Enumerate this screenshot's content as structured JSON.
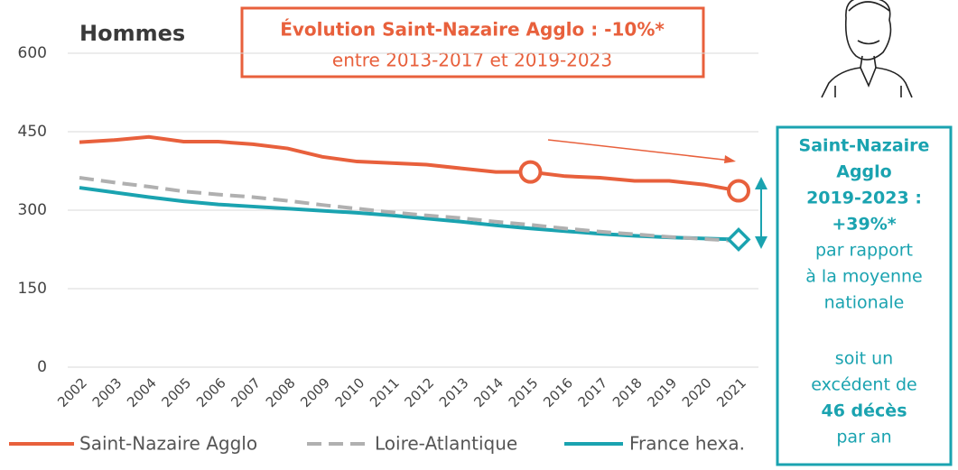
{
  "chart_data": {
    "type": "line",
    "title": "Hommes",
    "categories": [
      "2002",
      "2003",
      "2004",
      "2005",
      "2006",
      "2007",
      "2008",
      "2009",
      "2010",
      "2011",
      "2012",
      "2013",
      "2014",
      "2015",
      "2016",
      "2017",
      "2018",
      "2019",
      "2020",
      "2021"
    ],
    "series": [
      {
        "name": "Saint-Nazaire Agglo",
        "color": "#e8603c",
        "dash": false,
        "values": [
          430,
          434,
          440,
          431,
          431,
          426,
          418,
          402,
          393,
          390,
          387,
          380,
          373,
          373,
          365,
          362,
          356,
          356,
          349,
          337
        ]
      },
      {
        "name": "Loire-Atlantique",
        "color": "#b0b0b0",
        "dash": true,
        "values": [
          362,
          353,
          345,
          336,
          330,
          325,
          318,
          310,
          303,
          296,
          290,
          285,
          278,
          272,
          265,
          259,
          254,
          249,
          245,
          241
        ]
      },
      {
        "name": "France hexa.",
        "color": "#1aa3b0",
        "dash": false,
        "values": [
          343,
          334,
          325,
          317,
          311,
          307,
          303,
          299,
          295,
          290,
          284,
          278,
          271,
          265,
          260,
          255,
          251,
          248,
          246,
          244
        ]
      }
    ],
    "ylim": [
      0,
      600
    ],
    "yticks": [
      0,
      150,
      300,
      450,
      600
    ],
    "grid": true,
    "annotation": [
      "Évolution Saint-Nazaire Agglo : -10%*",
      "entre 2013-2017 et 2019-2023"
    ],
    "side_box": [
      {
        "text": "Saint-Nazaire",
        "bold": true
      },
      {
        "text": "Agglo",
        "bold": true
      },
      {
        "text": "2019-2023 :",
        "bold": true
      },
      {
        "text": "+39%*",
        "bold": true
      },
      {
        "text": "par rapport",
        "bold": false
      },
      {
        "text": "à la moyenne",
        "bold": false
      },
      {
        "text": "nationale",
        "bold": false
      },
      {
        "text": "soit un",
        "bold": false
      },
      {
        "text": "excédent de",
        "bold": false
      },
      {
        "text": "46 décès",
        "bold": true
      },
      {
        "text": "par an",
        "bold": false
      }
    ]
  }
}
